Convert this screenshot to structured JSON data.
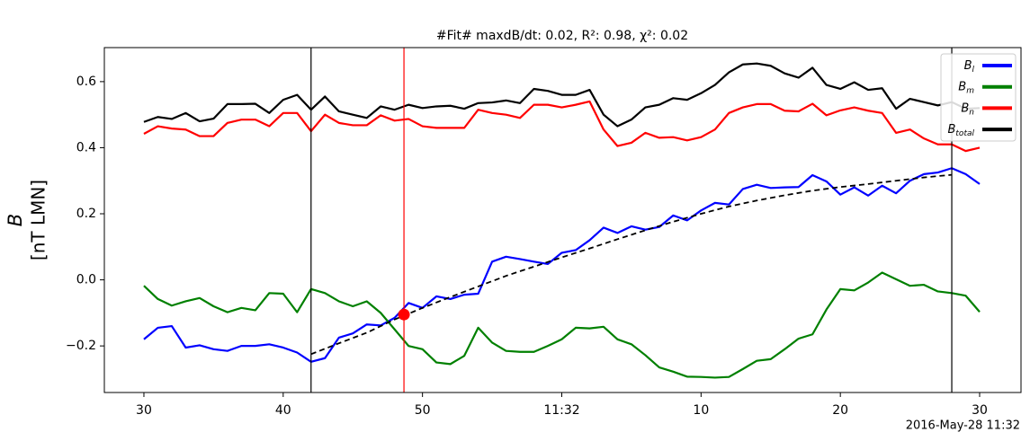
{
  "chart_data": {
    "type": "line",
    "title": "#Fit# maxdB/dt: 0.02, R²: 0.98, χ²: 0.02",
    "ylabel": "B",
    "ylabel_unit": "[nT LMN]",
    "footer": "2016-May-28 11:32",
    "x": [
      30,
      31,
      32,
      33,
      34,
      35,
      36,
      37,
      38,
      39,
      40,
      41,
      42,
      43,
      44,
      45,
      46,
      47,
      48,
      49,
      50,
      51,
      52,
      53,
      54,
      55,
      56,
      57,
      58,
      59,
      60,
      61,
      62,
      63,
      64,
      65,
      66,
      67,
      68,
      69,
      70,
      71,
      72,
      73,
      74,
      75,
      76,
      77,
      78,
      79,
      80,
      81,
      82,
      83,
      84,
      85,
      86,
      87,
      88,
      89,
      90
    ],
    "xlim": [
      27.16,
      92.97
    ],
    "xticks": [
      30,
      40,
      50,
      {
        "value": 60,
        "label": "11:32"
      },
      {
        "value": 70,
        "label": "10"
      },
      {
        "value": 80,
        "label": "20"
      },
      {
        "value": 90,
        "label": "30"
      }
    ],
    "ylim": [
      -0.341,
      0.703
    ],
    "yticks": [
      {
        "value": -0.2,
        "label": "−0.2"
      },
      {
        "value": 0,
        "label": "0.0"
      },
      0.2,
      0.4,
      0.6
    ],
    "legend": "upper right",
    "series": [
      {
        "name": "B",
        "sub": "l",
        "color": "#0000ff",
        "values": [
          -0.18,
          -0.145,
          -0.14,
          -0.205,
          -0.198,
          -0.21,
          -0.215,
          -0.2,
          -0.2,
          -0.195,
          -0.205,
          -0.22,
          -0.248,
          -0.237,
          -0.175,
          -0.162,
          -0.135,
          -0.138,
          -0.115,
          -0.07,
          -0.085,
          -0.05,
          -0.058,
          -0.045,
          -0.042,
          0.055,
          0.07,
          0.063,
          0.055,
          0.048,
          0.082,
          0.09,
          0.12,
          0.158,
          0.142,
          0.162,
          0.152,
          0.16,
          0.195,
          0.18,
          0.21,
          0.233,
          0.228,
          0.275,
          0.288,
          0.278,
          0.28,
          0.281,
          0.317,
          0.298,
          0.258,
          0.28,
          0.255,
          0.285,
          0.262,
          0.3,
          0.32,
          0.325,
          0.338,
          0.32,
          0.29
        ]
      },
      {
        "name": "B",
        "sub": "m",
        "color": "#008000",
        "values": [
          -0.018,
          -0.058,
          -0.078,
          -0.065,
          -0.055,
          -0.08,
          -0.098,
          -0.085,
          -0.092,
          -0.04,
          -0.042,
          -0.098,
          -0.028,
          -0.04,
          -0.065,
          -0.08,
          -0.065,
          -0.1,
          -0.15,
          -0.2,
          -0.21,
          -0.25,
          -0.255,
          -0.23,
          -0.145,
          -0.19,
          -0.215,
          -0.218,
          -0.218,
          -0.2,
          -0.18,
          -0.145,
          -0.147,
          -0.142,
          -0.18,
          -0.195,
          -0.228,
          -0.265,
          -0.278,
          -0.293,
          -0.294,
          -0.296,
          -0.294,
          -0.27,
          -0.245,
          -0.24,
          -0.21,
          -0.178,
          -0.165,
          -0.09,
          -0.028,
          -0.032,
          -0.008,
          0.022,
          0.002,
          -0.018,
          -0.015,
          -0.035,
          -0.04,
          -0.048,
          -0.097
        ]
      },
      {
        "name": "B",
        "sub": "n",
        "color": "#ff0000",
        "values": [
          0.442,
          0.465,
          0.458,
          0.455,
          0.435,
          0.435,
          0.475,
          0.485,
          0.485,
          0.465,
          0.505,
          0.505,
          0.45,
          0.5,
          0.475,
          0.468,
          0.468,
          0.498,
          0.482,
          0.487,
          0.465,
          0.46,
          0.46,
          0.46,
          0.515,
          0.505,
          0.5,
          0.49,
          0.53,
          0.53,
          0.522,
          0.53,
          0.54,
          0.455,
          0.405,
          0.415,
          0.445,
          0.43,
          0.432,
          0.422,
          0.432,
          0.455,
          0.505,
          0.522,
          0.532,
          0.532,
          0.512,
          0.51,
          0.533,
          0.498,
          0.513,
          0.522,
          0.512,
          0.505,
          0.445,
          0.455,
          0.428,
          0.41,
          0.41,
          0.39,
          0.4
        ]
      },
      {
        "name": "B",
        "sub": "total",
        "color": "#000000",
        "values": [
          0.478,
          0.493,
          0.487,
          0.505,
          0.48,
          0.488,
          0.532,
          0.532,
          0.533,
          0.505,
          0.545,
          0.56,
          0.515,
          0.555,
          0.51,
          0.5,
          0.49,
          0.525,
          0.515,
          0.53,
          0.52,
          0.525,
          0.527,
          0.518,
          0.535,
          0.537,
          0.543,
          0.535,
          0.578,
          0.572,
          0.56,
          0.56,
          0.575,
          0.5,
          0.465,
          0.485,
          0.522,
          0.53,
          0.55,
          0.545,
          0.565,
          0.59,
          0.628,
          0.652,
          0.655,
          0.648,
          0.625,
          0.612,
          0.642,
          0.59,
          0.578,
          0.598,
          0.575,
          0.58,
          0.518,
          0.548,
          0.538,
          0.528,
          0.538,
          0.518,
          0.52
        ]
      }
    ],
    "fit": {
      "color": "#000000",
      "x": [
        42,
        44,
        46,
        48,
        50,
        52,
        54,
        56,
        58,
        60,
        62,
        64,
        66,
        68,
        70,
        72,
        74,
        76,
        78,
        80,
        82,
        84,
        86,
        88
      ],
      "values": [
        -0.225,
        -0.192,
        -0.16,
        -0.12,
        -0.085,
        -0.052,
        -0.02,
        0.012,
        0.04,
        0.068,
        0.095,
        0.123,
        0.15,
        0.176,
        0.2,
        0.222,
        0.24,
        0.256,
        0.27,
        0.281,
        0.29,
        0.3,
        0.31,
        0.318
      ]
    },
    "vlines": [
      {
        "x": 42,
        "color": "#000000"
      },
      {
        "x": 88,
        "color": "#000000"
      },
      {
        "x": 48.67,
        "color": "#ff0000"
      }
    ],
    "marker": {
      "x": 48.67,
      "y": -0.105,
      "color": "#ff0000"
    }
  }
}
